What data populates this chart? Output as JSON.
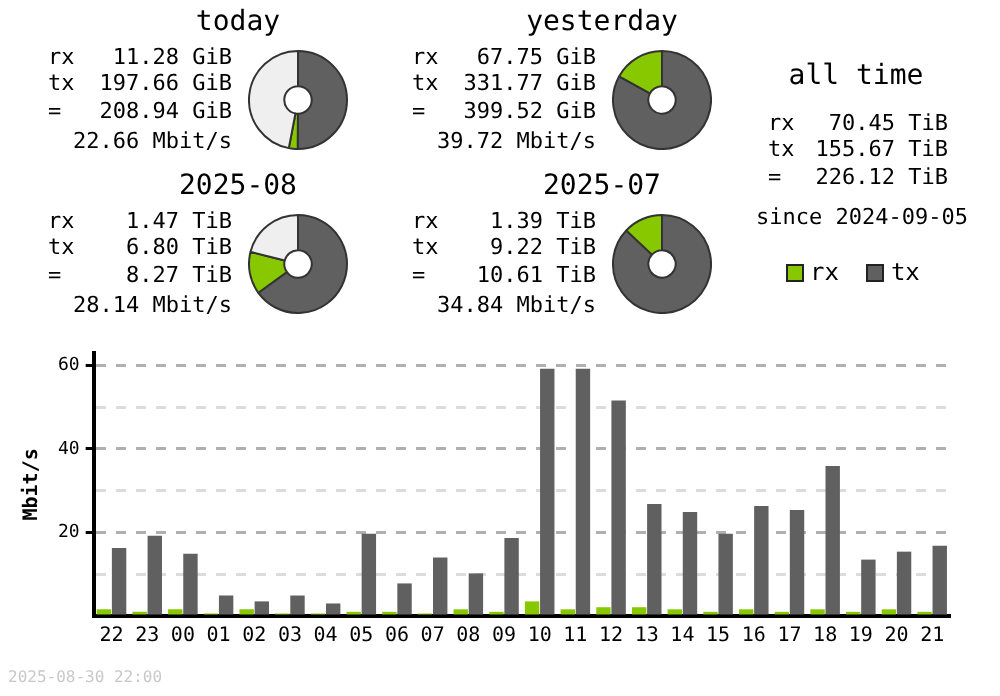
{
  "chart_data": [
    {
      "type": "donut",
      "title": "today",
      "categories": [
        null,
        null,
        null
      ],
      "values": [
        50.1,
        2.9,
        47
      ],
      "colors": [
        "#606060",
        "#88c800",
        "#efefef"
      ],
      "annotations": [
        "rx 11.28 GiB",
        "tx 197.66 GiB",
        "= 208.94 GiB",
        "22.66 Mbit/s"
      ]
    },
    {
      "type": "donut",
      "title": "yesterday",
      "categories": [
        null,
        null
      ],
      "values": [
        83,
        17
      ],
      "colors": [
        "#606060",
        "#88c800"
      ],
      "annotations": [
        "rx 67.75 GiB",
        "tx 331.77 GiB",
        "= 399.52 GiB",
        "39.72 Mbit/s"
      ]
    },
    {
      "type": "other",
      "title": "all time",
      "annotations": [
        "rx 70.45 TiB",
        "tx 155.67 TiB",
        "= 226.12 TiB",
        "since 2024-09-05"
      ]
    },
    {
      "type": "donut",
      "title": "2025-08",
      "categories": [
        null,
        null,
        null
      ],
      "values": [
        65,
        14,
        21
      ],
      "colors": [
        "#606060",
        "#88c800",
        "#efefef"
      ],
      "annotations": [
        "rx 1.47 TiB",
        "tx 6.80 TiB",
        "= 8.27 TiB",
        "28.14 Mbit/s"
      ]
    },
    {
      "type": "donut",
      "title": "2025-07",
      "categories": [
        null,
        null
      ],
      "values": [
        87,
        13
      ],
      "colors": [
        "#606060",
        "#88c800"
      ],
      "annotations": [
        "rx 1.39 TiB",
        "tx 9.22 TiB",
        "= 10.61 TiB",
        "34.84 Mbit/s"
      ]
    },
    {
      "type": "bar",
      "ylabel": "Mbit/s",
      "categories": [
        "22",
        "23",
        "00",
        "01",
        "02",
        "03",
        "04",
        "05",
        "06",
        "07",
        "08",
        "09",
        "10",
        "11",
        "12",
        "13",
        "14",
        "15",
        "16",
        "17",
        "18",
        "19",
        "20",
        "21"
      ],
      "series": [
        {
          "name": "rx",
          "color": "#88c800",
          "values": [
            1.6,
            1.0,
            1.6,
            0.6,
            1.6,
            0.6,
            0.6,
            1.0,
            1.0,
            0.6,
            1.6,
            1.0,
            3.5,
            1.6,
            2.1,
            2.1,
            1.6,
            1.0,
            1.6,
            1.0,
            1.6,
            1.0,
            1.6,
            1.0
          ]
        },
        {
          "name": "tx",
          "color": "#606060",
          "values": [
            16.3,
            19.2,
            14.9,
            4.9,
            3.5,
            4.9,
            3.0,
            19.7,
            7.8,
            14.0,
            10.2,
            18.7,
            59.2,
            59.2,
            51.6,
            26.8,
            24.9,
            19.7,
            26.3,
            25.4,
            35.9,
            13.5,
            15.4,
            16.8
          ]
        }
      ],
      "ylim": [
        0,
        63
      ],
      "yticks": [
        {
          "value": 0,
          "label": null
        },
        {
          "value": 10,
          "label": null
        },
        20,
        {
          "value": 30,
          "label": null
        },
        40,
        {
          "value": 50,
          "label": null
        },
        60
      ],
      "grid": "y",
      "legend": "top right",
      "annotations": [
        "2025-08-30 22:00"
      ]
    }
  ]
}
